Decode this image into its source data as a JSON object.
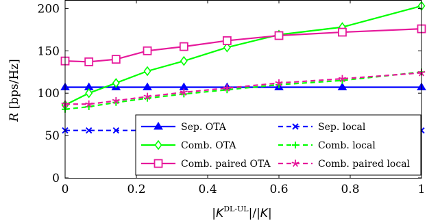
{
  "chart_data": {
    "type": "line",
    "xlabel_parts": [
      "|",
      "K",
      "DL-UL",
      "|/|",
      "K",
      "|"
    ],
    "ylabel_parts": [
      "R",
      " [bps/Hz]"
    ],
    "xlim": [
      0,
      1
    ],
    "ylim": [
      0,
      210
    ],
    "xticks": [
      0,
      0.2,
      0.4,
      0.6,
      0.8,
      1
    ],
    "xtick_labels": [
      "0",
      "0.2",
      "0.4",
      "0.6",
      "0.8",
      "1"
    ],
    "yticks": [
      0,
      50,
      100,
      150,
      200
    ],
    "ytick_labels": [
      "0",
      "50",
      "100",
      "150",
      "200"
    ],
    "grid": false,
    "legend_position": "lower-right",
    "series": [
      {
        "name": "Sep. OTA",
        "color": "#0000ff",
        "marker": "triangle",
        "dash": "solid",
        "x": [
          0,
          0.0667,
          0.1429,
          0.2308,
          0.3333,
          0.4545,
          0.6,
          0.7778,
          1
        ],
        "y": [
          107,
          107,
          107,
          107,
          107,
          107,
          107,
          107,
          107
        ]
      },
      {
        "name": "Comb. OTA",
        "color": "#00ff00",
        "marker": "diamond",
        "dash": "solid",
        "x": [
          0,
          0.0667,
          0.1429,
          0.2308,
          0.3333,
          0.4545,
          0.6,
          0.7778,
          1
        ],
        "y": [
          86,
          100,
          112,
          126,
          138,
          154,
          169,
          178,
          203
        ]
      },
      {
        "name": "Comb. paired OTA",
        "color": "#e6199b",
        "marker": "square",
        "dash": "solid",
        "x": [
          0,
          0.0667,
          0.1429,
          0.2308,
          0.3333,
          0.4545,
          0.6,
          0.7778,
          1
        ],
        "y": [
          138,
          137,
          140,
          150,
          155,
          162,
          168,
          172,
          176
        ]
      },
      {
        "name": "Sep. local",
        "color": "#0000ff",
        "marker": "x",
        "dash": "dashed",
        "x": [
          0,
          0.0667,
          0.1429,
          0.2308,
          0.3333,
          0.4545,
          0.6,
          0.7778,
          1
        ],
        "y": [
          56,
          56,
          56,
          56,
          56,
          56,
          56,
          56,
          56
        ]
      },
      {
        "name": "Comb. local",
        "color": "#00ff00",
        "marker": "plus",
        "dash": "dashed",
        "x": [
          0,
          0.0667,
          0.1429,
          0.2308,
          0.3333,
          0.4545,
          0.6,
          0.7778,
          1
        ],
        "y": [
          81,
          84,
          89,
          94,
          99,
          104,
          110,
          115,
          125
        ]
      },
      {
        "name": "Comb. paired local",
        "color": "#e6199b",
        "marker": "star",
        "dash": "dashed",
        "x": [
          0,
          0.0667,
          0.1429,
          0.2308,
          0.3333,
          0.4545,
          0.6,
          0.7778,
          1
        ],
        "y": [
          87,
          87,
          91,
          96,
          101,
          106,
          112,
          117,
          124
        ]
      }
    ]
  }
}
